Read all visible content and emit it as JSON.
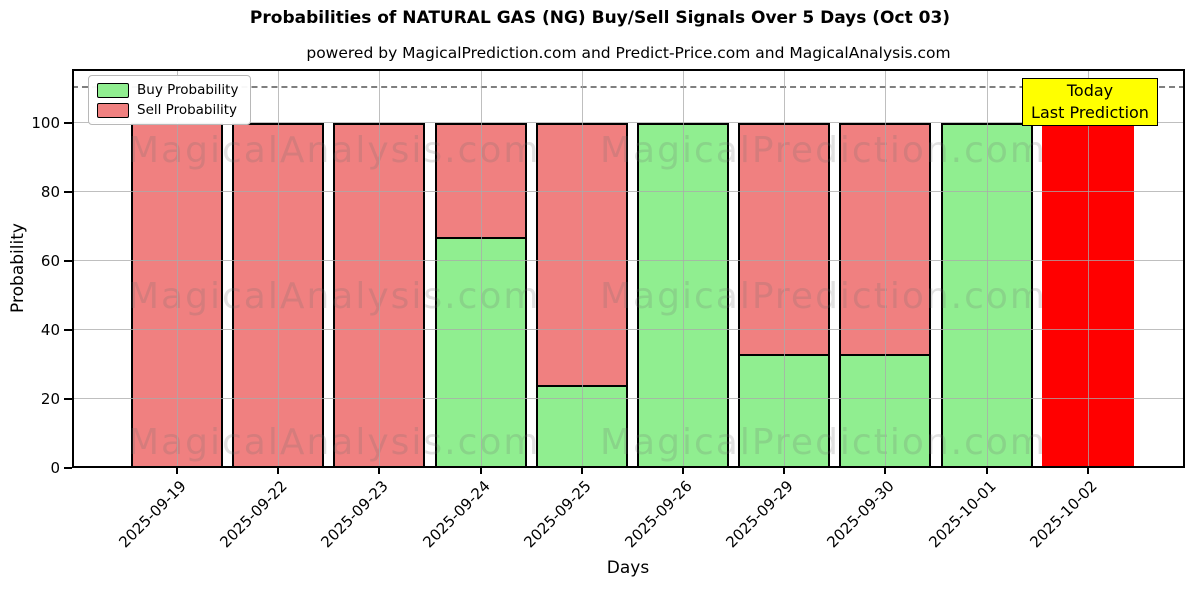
{
  "title": "Probabilities of NATURAL GAS (NG) Buy/Sell Signals Over 5 Days (Oct 03)",
  "subtitle": "powered by MagicalPrediction.com and Predict-Price.com and MagicalAnalysis.com",
  "legend": {
    "items": [
      {
        "label": "Buy Probability",
        "color": "#90ee90"
      },
      {
        "label": "Sell Probability",
        "color": "#f08080"
      }
    ]
  },
  "annotation_box": {
    "line1": "Today",
    "line2": "Last Prediction",
    "bg_color": "#ffff00"
  },
  "watermarks": {
    "left_text": "MagicalAnalysis.com",
    "right_text": "MagicalPrediction.com",
    "rows": 3
  },
  "chart_data": {
    "type": "bar",
    "stacked": true,
    "title": "Probabilities of NATURAL GAS (NG) Buy/Sell Signals Over 5 Days (Oct 03)",
    "xlabel": "Days",
    "ylabel": "Probability",
    "categories": [
      "2025-09-19",
      "2025-09-22",
      "2025-09-23",
      "2025-09-24",
      "2025-09-25",
      "2025-09-26",
      "2025-09-29",
      "2025-09-30",
      "2025-10-01",
      "2025-10-02"
    ],
    "series": [
      {
        "name": "Buy Probability",
        "color": "#90ee90",
        "values": [
          0,
          0,
          0,
          67,
          24,
          100,
          33,
          33,
          100,
          0
        ]
      },
      {
        "name": "Sell Probability",
        "color": "#f08080",
        "values": [
          100,
          100,
          100,
          33,
          76,
          0,
          67,
          67,
          0,
          100
        ]
      }
    ],
    "highlight": {
      "index": 9,
      "category": "2025-10-02",
      "color": "#ff0000",
      "label": "Today Last Prediction"
    },
    "yticks": [
      0,
      20,
      40,
      60,
      80,
      100
    ],
    "ylim": [
      0,
      115.5
    ],
    "dashed_line_y": 110,
    "grid": true,
    "legend_position": "upper left"
  },
  "colors": {
    "buy": "#90ee90",
    "sell": "#f08080",
    "today_bar": "#ff0000",
    "grid": "#aaaaaa",
    "dashed_line": "#7f7f7f",
    "watermark": "#6e6e6e",
    "annotation_bg": "#ffff00",
    "bar_edge": "#000000"
  }
}
